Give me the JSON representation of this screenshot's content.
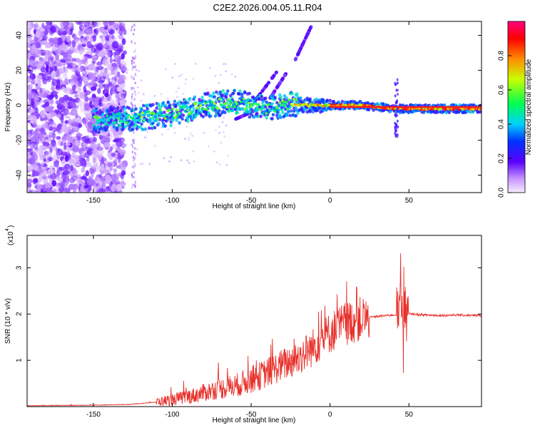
{
  "title": "C2E2.2026.004.05.11.R04",
  "chart_data": [
    {
      "type": "heatmap",
      "xlabel": "Height of straight line (km)",
      "ylabel": "Frequency (Hz)",
      "xlim": [
        -192,
        96
      ],
      "ylim": [
        -50,
        48
      ],
      "xticks": [
        -150,
        -100,
        -50,
        0,
        50
      ],
      "yticks": [
        -40,
        -20,
        0,
        20,
        40
      ],
      "colorbar": {
        "label": "Normalized spectral amplitude",
        "range": [
          0,
          1
        ],
        "ticks": [
          0.0,
          0.2,
          0.4,
          0.6,
          0.8
        ]
      },
      "dominant_ridge": {
        "x": [
          -150,
          -120,
          -100,
          -80,
          -60,
          -40,
          -25,
          -15,
          0,
          20,
          40,
          60,
          96
        ],
        "frequency": [
          -9,
          -7,
          -5,
          0,
          2,
          -2,
          1,
          0,
          0,
          0,
          -2,
          -2,
          -2
        ]
      }
    },
    {
      "type": "line",
      "xlabel": "Height of straight line (km)",
      "ylabel": "SNR (10 * v/v)",
      "yscale_label": "(x10",
      "yscale_exponent": "4",
      "xlim": [
        -192,
        96
      ],
      "ylim": [
        0,
        3.7
      ],
      "xticks": [
        -150,
        -100,
        -50,
        0,
        50
      ],
      "yticks": [
        1,
        2,
        3
      ],
      "series": [
        {
          "name": "SNR",
          "color": "#e8302a",
          "envelope_x": [
            -192,
            -150,
            -125,
            -110,
            -100,
            -85,
            -75,
            -60,
            -45,
            -30,
            -20,
            -10,
            0,
            10,
            20,
            30,
            40,
            44,
            45,
            46,
            48,
            52,
            60,
            70,
            80,
            90,
            96
          ],
          "envelope_y": [
            0.02,
            0.03,
            0.05,
            0.1,
            0.15,
            0.25,
            0.35,
            0.45,
            0.65,
            0.9,
            1.05,
            1.3,
            1.6,
            1.8,
            1.9,
            1.95,
            1.98,
            2.0,
            2.2,
            2.0,
            2.0,
            2.0,
            1.98,
            1.97,
            1.98,
            1.97,
            1.97
          ]
        }
      ]
    }
  ]
}
